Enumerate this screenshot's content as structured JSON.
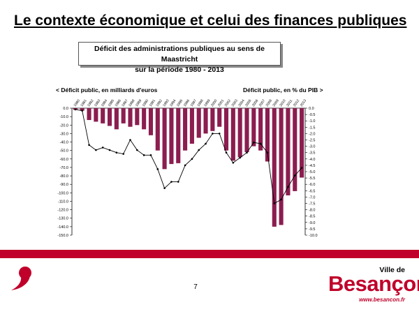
{
  "slide": {
    "title": "Le contexte économique et celui des finances publiques",
    "page_number": "7"
  },
  "chart_box": {
    "line1": "Déficit des administrations publiques au sens de Maastricht",
    "line2": "sur la période 1980 - 2013"
  },
  "logo": {
    "ville": "Ville de",
    "name": "Besançon",
    "url": "www.besancon.fr"
  },
  "colors": {
    "bar": "#8b1d4f",
    "line": "#000000",
    "brand_red": "#c0002a"
  },
  "chart_data": {
    "type": "bar",
    "left_axis_title": "< Déficit public, en milliards d'euros",
    "right_axis_title": "Déficit public, en % du PIB >",
    "categories": [
      "1980",
      "1981",
      "1982",
      "1983",
      "1984",
      "1985",
      "1986",
      "1987",
      "1988",
      "1989",
      "1990",
      "1991",
      "1992",
      "1993",
      "1994",
      "1995",
      "1996",
      "1997",
      "1998",
      "1999",
      "2000",
      "2001",
      "2002",
      "2003",
      "2004",
      "2005",
      "2006",
      "2007",
      "2008",
      "2009",
      "2010",
      "2011",
      "2012",
      "2013"
    ],
    "ylim_left": [
      -150,
      0
    ],
    "ylim_right": [
      -10,
      0
    ],
    "left_ticks": [
      "0.0",
      "-10.0",
      "-20.0",
      "-30.0",
      "-40.0",
      "-50.0",
      "-60.0",
      "-70.0",
      "-80.0",
      "-90.0",
      "-100.0",
      "-110.0",
      "-120.0",
      "-130.0",
      "-140.0",
      "-150.0"
    ],
    "right_ticks": [
      "0.0",
      "-0.5",
      "-1.0",
      "-1.5",
      "-2.0",
      "-2.5",
      "-3.0",
      "-3.5",
      "-4.0",
      "-4.5",
      "-5.0",
      "-5.5",
      "-6.0",
      "-6.5",
      "-7.0",
      "-7.5",
      "-8.0",
      "-8.5",
      "-9.0",
      "-9.5",
      "-10.0"
    ],
    "series": [
      {
        "name": "Déficit public, en milliards d'euros",
        "type": "bar",
        "axis": "left",
        "values": [
          -2,
          -3,
          -14,
          -16,
          -18,
          -21,
          -25,
          -18,
          -22,
          -20,
          -25,
          -32,
          -50,
          -72,
          -66,
          -65,
          -50,
          -42,
          -35,
          -30,
          -27,
          -22,
          -50,
          -62,
          -58,
          -52,
          -45,
          -50,
          -63,
          -140,
          -138,
          -103,
          -98,
          -82
        ]
      },
      {
        "name": "Déficit public, en % du PIB",
        "type": "line",
        "axis": "right",
        "values": [
          -0.1,
          -0.2,
          -2.9,
          -3.3,
          -3.1,
          -3.3,
          -3.5,
          -3.6,
          -2.5,
          -3.3,
          -3.7,
          -3.7,
          -4.8,
          -6.3,
          -5.8,
          -5.8,
          -4.5,
          -4.0,
          -3.3,
          -2.8,
          -2.0,
          -2.0,
          -3.5,
          -4.3,
          -3.9,
          -3.5,
          -2.7,
          -2.8,
          -3.5,
          -7.5,
          -7.2,
          -6.2,
          -5.3,
          -4.7
        ]
      }
    ]
  }
}
